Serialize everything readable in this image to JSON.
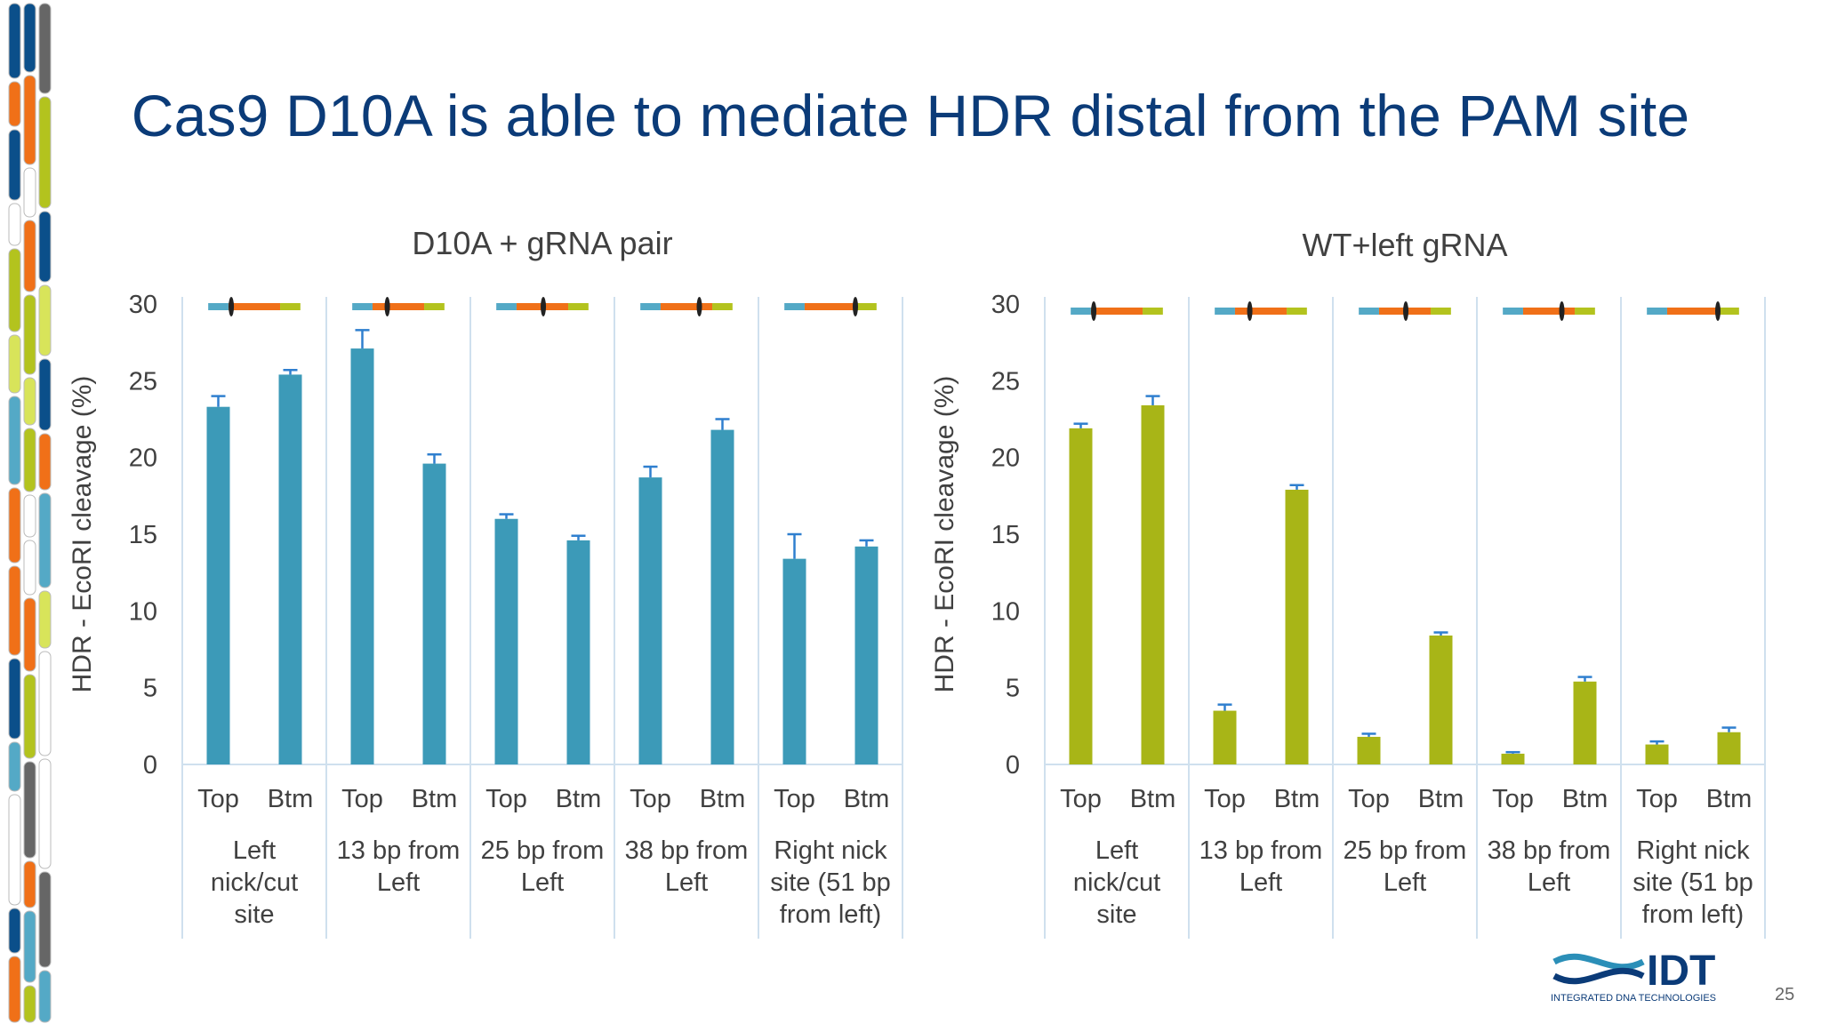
{
  "slide": {
    "title": "Cas9 D10A is able to mediate HDR distal from the PAM site",
    "page_number": "25",
    "logo": {
      "brand": "IDT",
      "tagline": "INTEGRATED DNA TECHNOLOGIES",
      "icon": "dna-helix-icon"
    }
  },
  "colors": {
    "title": "#0b3b78",
    "d10a_bars": "#3c9ab8",
    "wt_bars": "#a8b517",
    "error_bars": "#2f7fcf",
    "strip_blue": "#54a9c6",
    "strip_orange": "#f07018",
    "strip_green": "#b3c31e",
    "grid_lines": "#cfe0ee"
  },
  "chart_data": [
    {
      "type": "bar",
      "title": "D10A + gRNA pair",
      "ylabel": "HDR - EcoRI cleavage (%)",
      "ylim": [
        0,
        30
      ],
      "yticks": [
        0,
        5,
        10,
        15,
        20,
        25,
        30
      ],
      "groups": [
        "Left nick/cut site",
        "13 bp from Left",
        "25 bp from Left",
        "38 bp from Left",
        "Right nick site (51 bp from left)"
      ],
      "group_label_lines": [
        [
          "Left",
          "nick/cut",
          "site"
        ],
        [
          "13 bp from",
          "Left"
        ],
        [
          "25 bp from",
          "Left"
        ],
        [
          "38 bp from",
          "Left"
        ],
        [
          "Right nick",
          "site (51 bp",
          "from left)"
        ]
      ],
      "subcategories": [
        "Top",
        "Btm"
      ],
      "values": [
        [
          23.3,
          25.4
        ],
        [
          27.1,
          19.6
        ],
        [
          16.0,
          14.6
        ],
        [
          18.7,
          21.8
        ],
        [
          13.4,
          14.2
        ]
      ],
      "errors": [
        [
          0.7,
          0.3
        ],
        [
          1.2,
          0.6
        ],
        [
          0.3,
          0.3
        ],
        [
          0.7,
          0.7
        ],
        [
          1.6,
          0.4
        ]
      ],
      "marker_fraction": [
        0.25,
        0.38,
        0.51,
        0.64,
        0.77
      ],
      "bar_color": "#3c9ab8"
    },
    {
      "type": "bar",
      "title": "WT+left gRNA",
      "ylabel": "HDR - EcoRI cleavage (%)",
      "ylim": [
        0,
        30
      ],
      "yticks": [
        0,
        5,
        10,
        15,
        20,
        25,
        30
      ],
      "groups": [
        "Left nick/cut site",
        "13 bp from Left",
        "25 bp from Left",
        "38 bp from Left",
        "Right nick site (51 bp from left)"
      ],
      "group_label_lines": [
        [
          "Left",
          "nick/cut",
          "site"
        ],
        [
          "13 bp from",
          "Left"
        ],
        [
          "25 bp from",
          "Left"
        ],
        [
          "38 bp from",
          "Left"
        ],
        [
          "Right nick",
          "site (51 bp",
          "from left)"
        ]
      ],
      "subcategories": [
        "Top",
        "Btm"
      ],
      "values": [
        [
          21.9,
          23.4
        ],
        [
          3.5,
          17.9
        ],
        [
          1.8,
          8.4
        ],
        [
          0.7,
          5.4
        ],
        [
          1.3,
          2.1
        ]
      ],
      "errors": [
        [
          0.3,
          0.6
        ],
        [
          0.4,
          0.3
        ],
        [
          0.2,
          0.2
        ],
        [
          0.1,
          0.3
        ],
        [
          0.2,
          0.3
        ]
      ],
      "marker_fraction": [
        0.25,
        0.38,
        0.51,
        0.64,
        0.77
      ],
      "bar_color": "#a8b517"
    }
  ]
}
